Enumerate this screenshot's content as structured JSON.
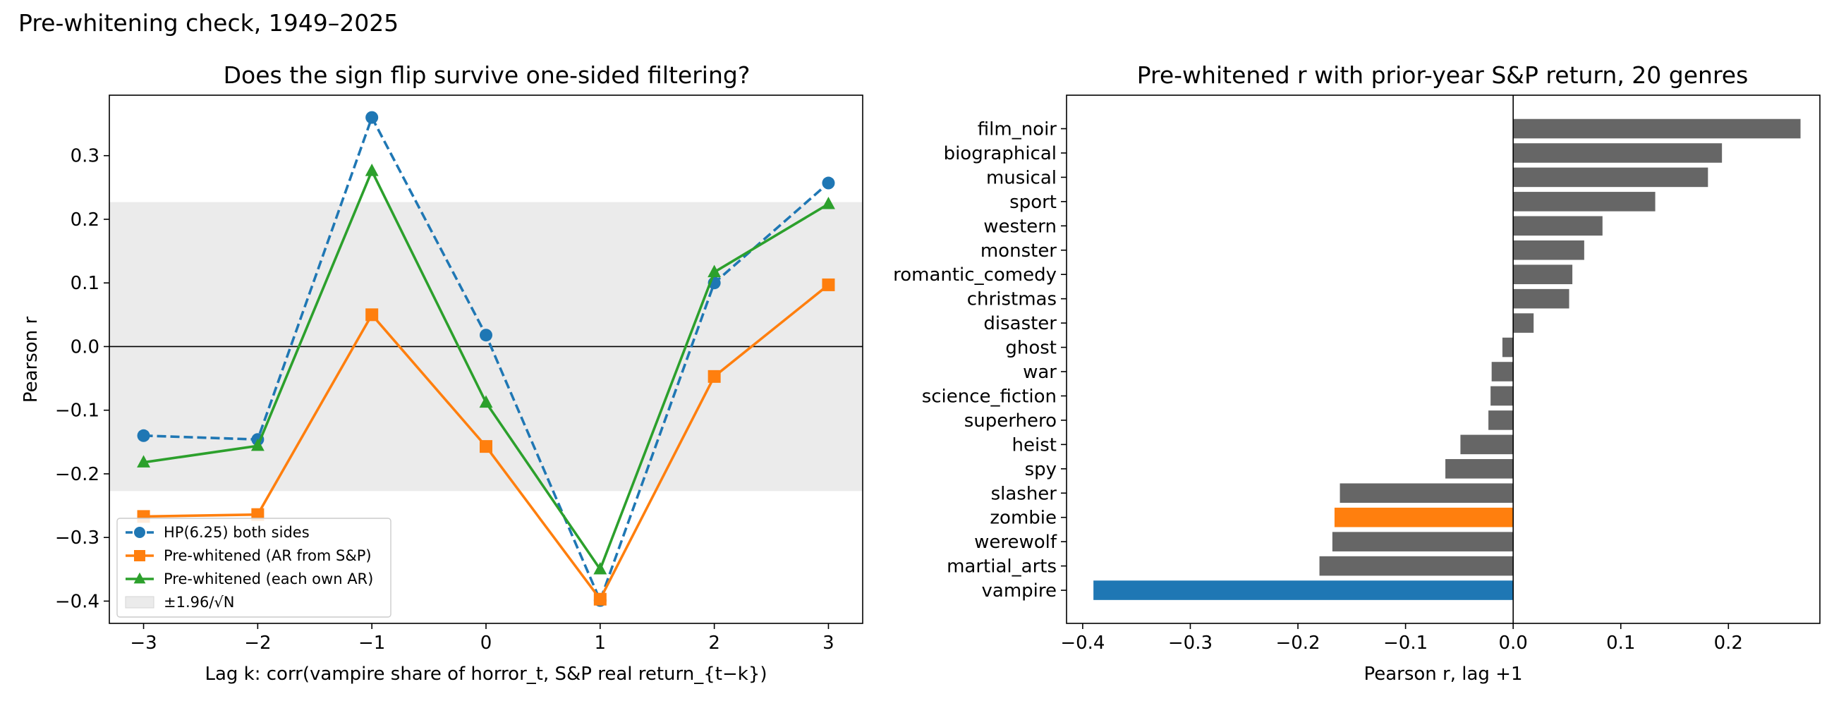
{
  "figure_title": "Pre-whitening check, 1949–2025",
  "chart_data": [
    {
      "type": "line",
      "title": "Does the sign flip survive one-sided filtering?",
      "xlabel": "Lag k: corr(vampire share of horror_t, S&P real return_{t−k})",
      "ylabel": "Pearson r",
      "x": [
        -3,
        -2,
        -1,
        0,
        1,
        2,
        3
      ],
      "xlim": [
        -3.3,
        3.3
      ],
      "ylim": [
        -0.435,
        0.395
      ],
      "xticks": [
        "−3",
        "−2",
        "−1",
        "0",
        "1",
        "2",
        "3"
      ],
      "yticks": [
        "−0.4",
        "−0.3",
        "−0.2",
        "−0.1",
        "0.0",
        "0.1",
        "0.2",
        "0.3"
      ],
      "yticks_values": [
        -0.4,
        -0.3,
        -0.2,
        -0.1,
        0.0,
        0.1,
        0.2,
        0.3
      ],
      "band": {
        "name": "±1.96/√N",
        "lower": -0.227,
        "upper": 0.227,
        "color": "#ebebeb"
      },
      "zero_line": true,
      "legend_position": "lower-left",
      "series": [
        {
          "name": "HP(6.25) both sides",
          "values": [
            -0.14,
            -0.146,
            0.36,
            0.018,
            -0.399,
            0.1,
            0.257
          ],
          "color": "#1f77b4",
          "marker": "circle",
          "linestyle": "dashed"
        },
        {
          "name": "Pre-whitened (AR from S&P)",
          "values": [
            -0.267,
            -0.264,
            0.05,
            -0.157,
            -0.397,
            -0.047,
            0.097
          ],
          "color": "#ff7f0e",
          "marker": "square",
          "linestyle": "solid"
        },
        {
          "name": "Pre-whitened (each own AR)",
          "values": [
            -0.182,
            -0.156,
            0.276,
            -0.088,
            -0.35,
            0.117,
            0.224
          ],
          "color": "#2ca02c",
          "marker": "triangle",
          "linestyle": "solid"
        }
      ]
    },
    {
      "type": "bar",
      "orientation": "horizontal",
      "title": "Pre-whitened r with prior-year S&P return, 20 genres",
      "xlabel": "Pearson r, lag +1",
      "xlim": [
        -0.415,
        0.285
      ],
      "xticks": [
        "−0.4",
        "−0.3",
        "−0.2",
        "−0.1",
        "0.0",
        "0.1",
        "0.2"
      ],
      "xticks_values": [
        -0.4,
        -0.3,
        -0.2,
        -0.1,
        0.0,
        0.1,
        0.2
      ],
      "zero_line": true,
      "default_color": "#666666",
      "categories": [
        "film_noir",
        "biographical",
        "musical",
        "sport",
        "western",
        "monster",
        "romantic_comedy",
        "christmas",
        "disaster",
        "ghost",
        "war",
        "science_fiction",
        "superhero",
        "heist",
        "spy",
        "slasher",
        "zombie",
        "werewolf",
        "martial_arts",
        "vampire"
      ],
      "values": [
        0.267,
        0.194,
        0.181,
        0.132,
        0.083,
        0.066,
        0.055,
        0.052,
        0.019,
        -0.01,
        -0.02,
        -0.021,
        -0.023,
        -0.049,
        -0.063,
        -0.161,
        -0.166,
        -0.168,
        -0.18,
        -0.39
      ],
      "highlights": {
        "vampire": "#1f77b4",
        "zombie": "#ff7f0e"
      }
    }
  ]
}
